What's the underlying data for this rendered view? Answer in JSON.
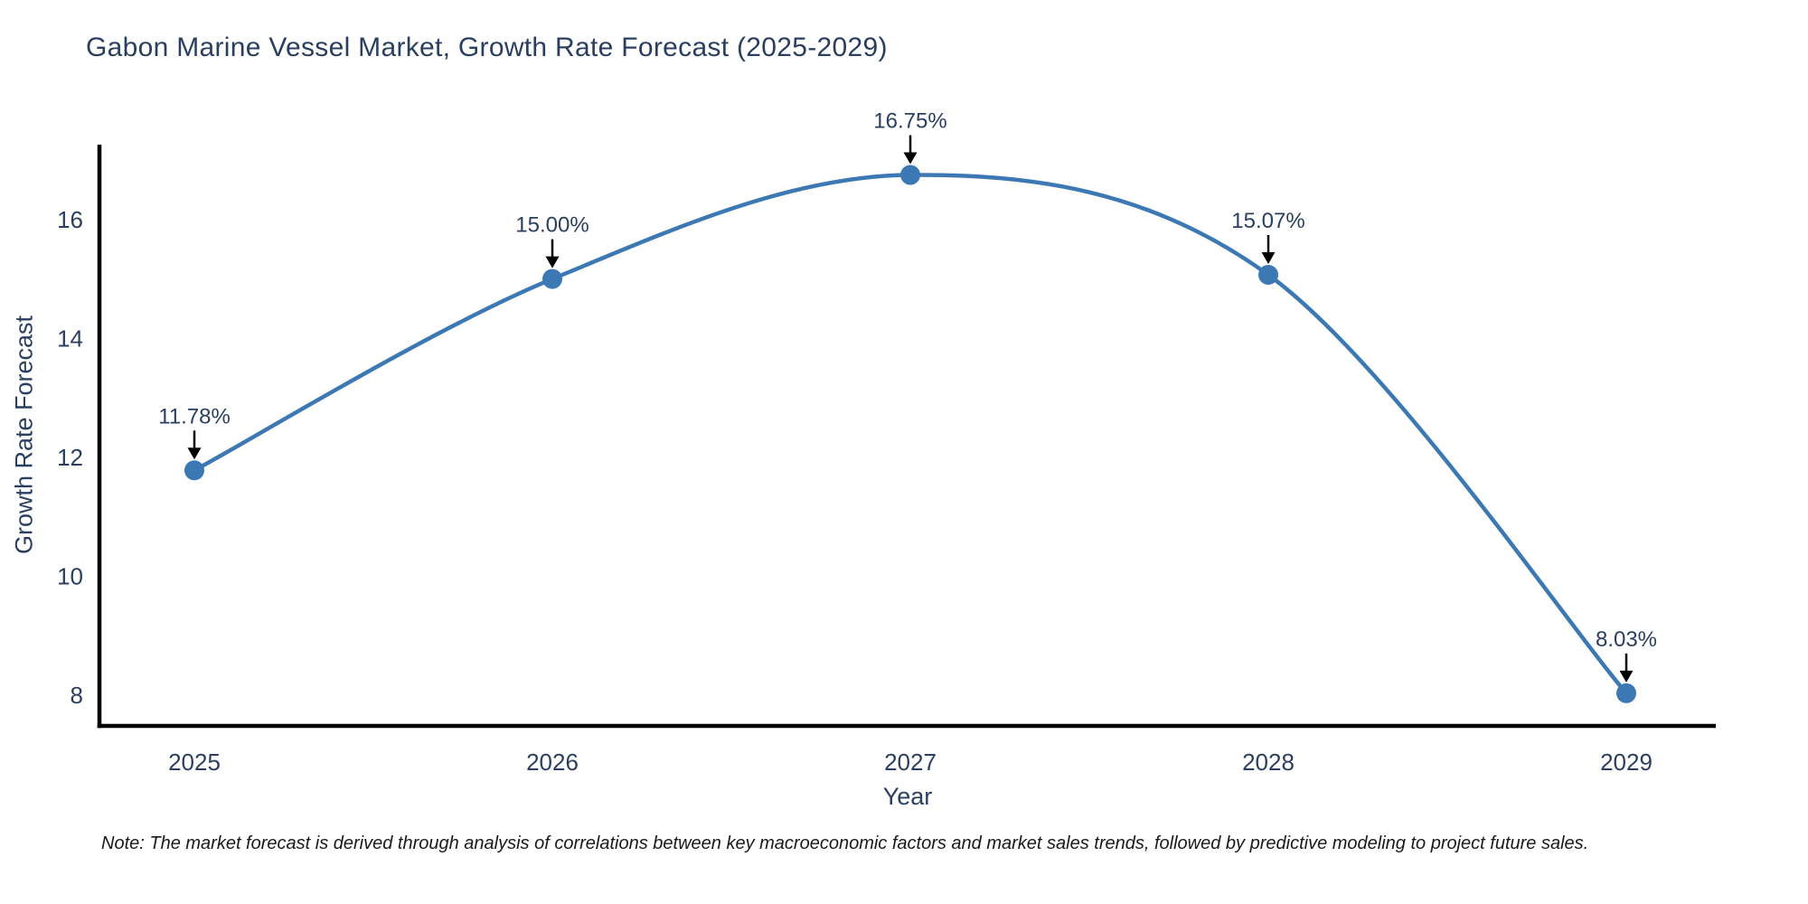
{
  "title": "Gabon Marine Vessel Market, Growth Rate Forecast (2025-2029)",
  "note": "Note: The market forecast is derived through analysis of correlations between key macroeconomic factors and market sales trends, followed by predictive modeling to project future sales.",
  "chart_data": {
    "type": "line",
    "title": "Gabon Marine Vessel Market, Growth Rate Forecast (2025-2029)",
    "x": [
      2025,
      2026,
      2027,
      2028,
      2029
    ],
    "series": [
      {
        "name": "Growth Rate Forecast",
        "values": [
          11.78,
          15.0,
          16.75,
          15.07,
          8.03
        ]
      }
    ],
    "point_labels": [
      "11.78%",
      "15.00%",
      "16.75%",
      "15.07%",
      "8.03%"
    ],
    "xlabel": "Year",
    "ylabel": "Growth Rate Forecast",
    "xticks": [
      "2025",
      "2026",
      "2027",
      "2028",
      "2029"
    ],
    "yticks": [
      8,
      10,
      12,
      14,
      16
    ],
    "ylim": [
      7.48,
      17.26
    ],
    "grid": false,
    "legend": false,
    "line_shape": "spline",
    "annotations_have_arrows": true,
    "colors": {
      "line": "#3c79b4",
      "marker": "#3c79b4",
      "axis": "#000000",
      "tick_text": "#2a3f5f",
      "annotation_text": "#2a3f5f",
      "arrow": "#000000",
      "title_text": "#2a3f5f",
      "note_text": "#1a1a1a",
      "background": "#ffffff"
    }
  }
}
